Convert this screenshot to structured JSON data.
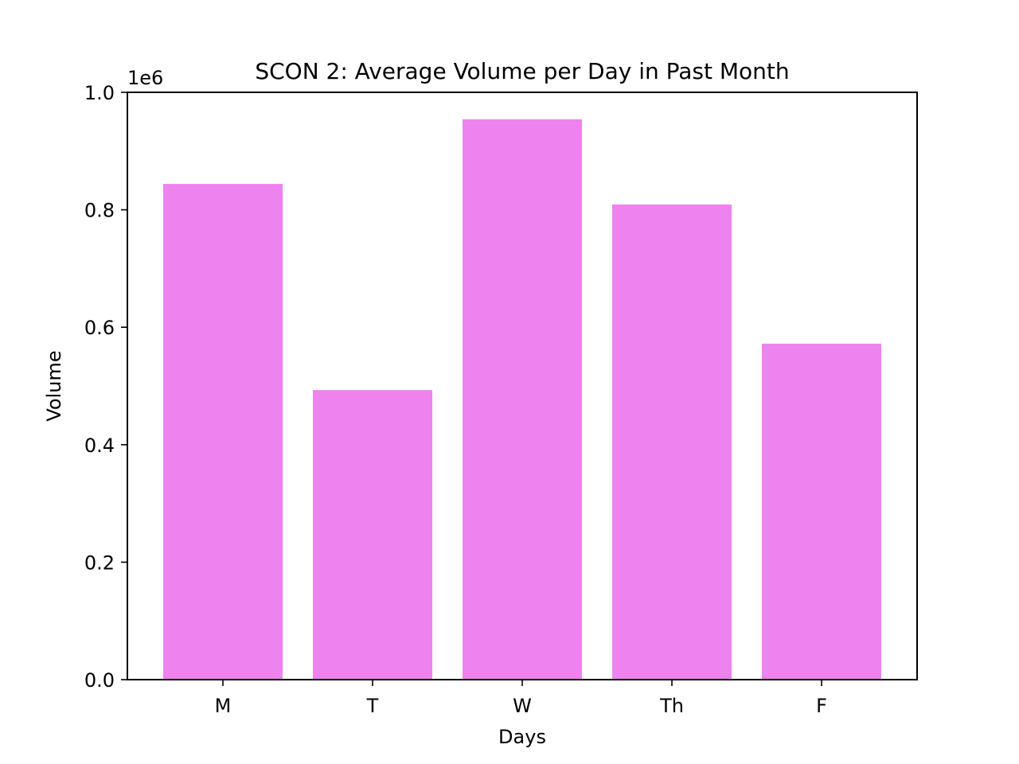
{
  "chart_data": {
    "type": "bar",
    "title": "SCON 2: Average Volume per Day in Past Month",
    "xlabel": "Days",
    "ylabel": "Volume",
    "y_offset_label": "1e6",
    "categories": [
      "M",
      "T",
      "W",
      "Th",
      "F"
    ],
    "values": [
      844000,
      493000,
      954000,
      809000,
      572000
    ],
    "ylim": [
      0,
      1000000
    ],
    "yticks": [
      0,
      200000,
      400000,
      600000,
      800000,
      1000000
    ],
    "ytick_labels": [
      "0.0",
      "0.2",
      "0.4",
      "0.6",
      "0.8",
      "1.0"
    ],
    "bar_color": "#ee82ee",
    "grid": false,
    "legend": false
  }
}
